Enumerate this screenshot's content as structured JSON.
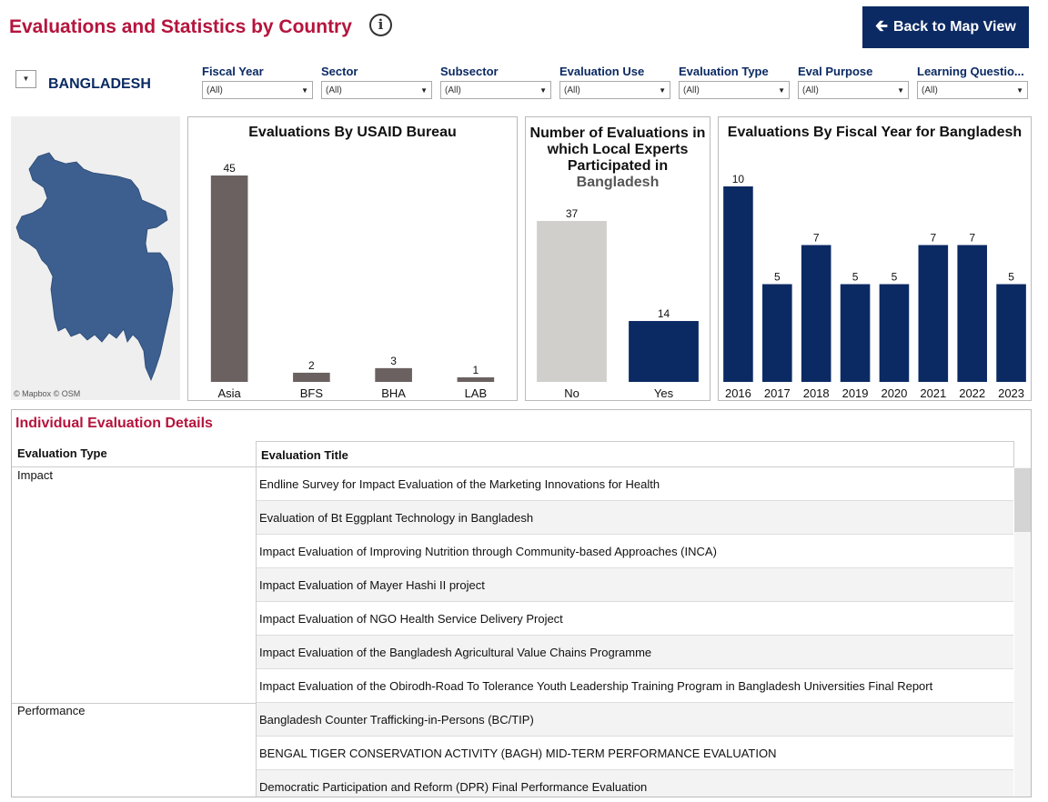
{
  "header": {
    "title": "Evaluations and Statistics by Country",
    "info_icon": "info-circle-icon",
    "back_button": "Back to Map View",
    "back_icon": "arrow-left-icon"
  },
  "country": {
    "name": "BANGLADESH",
    "toggle_icon": "caret-down-icon"
  },
  "filters": [
    {
      "label": "Fiscal Year",
      "value": "(All)"
    },
    {
      "label": "Sector",
      "value": "(All)"
    },
    {
      "label": "Subsector",
      "value": "(All)"
    },
    {
      "label": "Evaluation Use",
      "value": "(All)"
    },
    {
      "label": "Evaluation Type",
      "value": "(All)"
    },
    {
      "label": "Eval Purpose",
      "value": "(All)"
    },
    {
      "label": "Learning Questio...",
      "value": "(All)"
    }
  ],
  "map": {
    "credit": "© Mapbox  © OSM",
    "fill_color": "#3c5f8f"
  },
  "chart_data": [
    {
      "type": "bar",
      "title": "Evaluations By USAID Bureau",
      "categories": [
        "Asia",
        "BFS",
        "BHA",
        "LAB"
      ],
      "values": [
        45,
        2,
        3,
        1
      ],
      "color": "#6b6161",
      "ylim": [
        0,
        45
      ],
      "grid": false
    },
    {
      "type": "bar",
      "title_lines": [
        "Number of Evaluations in",
        "which Local Experts",
        "Participated in"
      ],
      "title_country": "Bangladesh",
      "categories": [
        "No",
        "Yes"
      ],
      "values": [
        37,
        14
      ],
      "colors": [
        "#d0cfcc",
        "#0b2a63"
      ],
      "ylim": [
        0,
        37
      ],
      "grid": false
    },
    {
      "type": "bar",
      "title": "Evaluations By Fiscal Year for Bangladesh",
      "categories": [
        "2016",
        "2017",
        "2018",
        "2019",
        "2020",
        "2021",
        "2022",
        "2023"
      ],
      "values": [
        10,
        5,
        7,
        5,
        5,
        7,
        7,
        5
      ],
      "color": "#0b2a63",
      "ylim": [
        0,
        10
      ],
      "grid": false
    }
  ],
  "details": {
    "title": "Individual Evaluation Details",
    "col_type": "Evaluation Type",
    "col_title": "Evaluation Title",
    "groups": [
      {
        "type": "Impact",
        "titles": [
          "Endline Survey for Impact Evaluation of the Marketing Innovations for Health",
          "Evaluation of Bt Eggplant Technology in Bangladesh",
          "Impact Evaluation of Improving Nutrition through Community-based Approaches (INCA)",
          "Impact Evaluation of Mayer Hashi II project",
          "Impact Evaluation of NGO Health Service Delivery Project",
          "Impact Evaluation of the Bangladesh Agricultural Value Chains Programme",
          "Impact Evaluation of the Obirodh-Road To Tolerance Youth Leadership Training Program in Bangladesh Universities Final Report"
        ]
      },
      {
        "type": "Performance",
        "titles": [
          "Bangladesh Counter Trafficking-in-Persons (BC/TIP)",
          "BENGAL TIGER CONSERVATION ACTIVITY (BAGH) MID-TERM PERFORMANCE EVALUATION",
          "Democratic Participation and Reform (DPR) Final Performance Evaluation"
        ]
      }
    ]
  }
}
